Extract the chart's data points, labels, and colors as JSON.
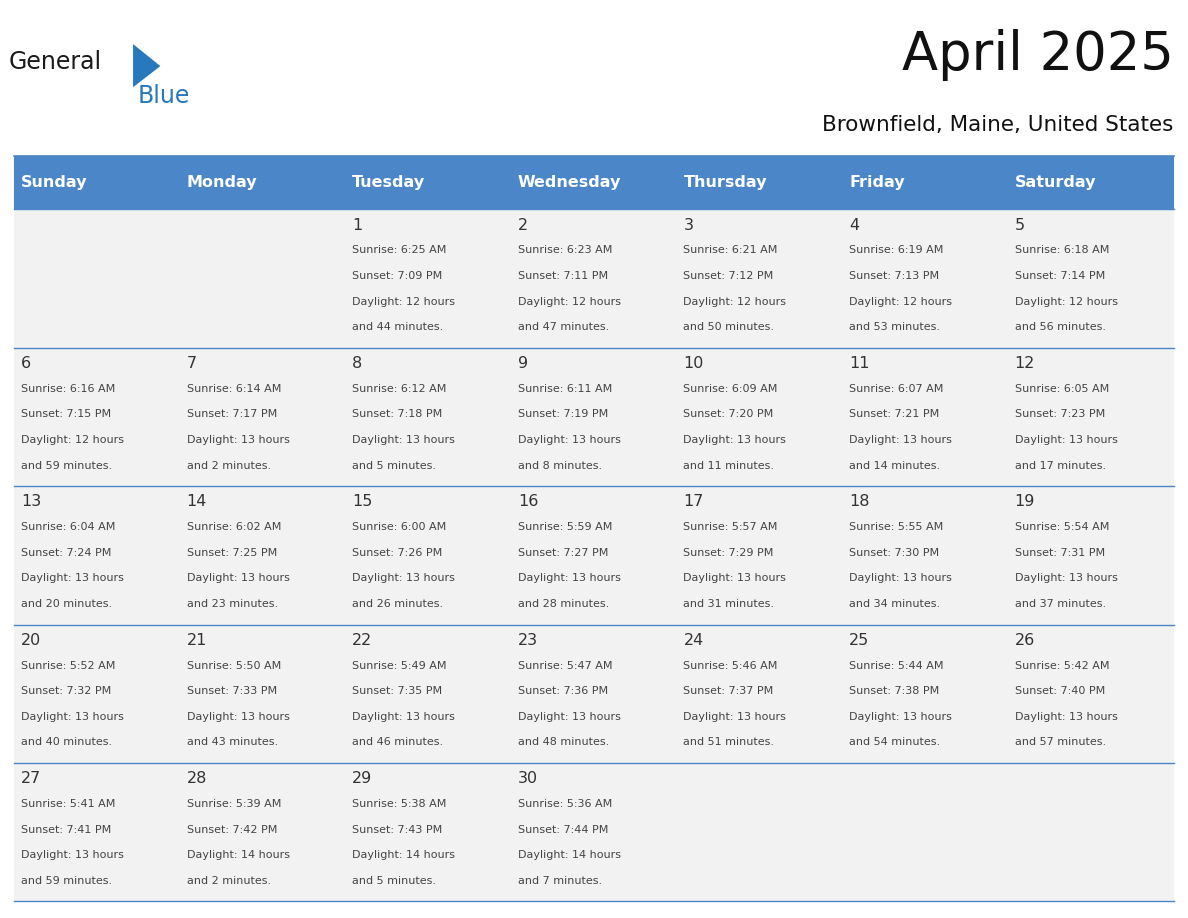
{
  "title": "April 2025",
  "subtitle": "Brownfield, Maine, United States",
  "header_color": "#4a86c8",
  "header_text_color": "#ffffff",
  "cell_bg_color": "#f2f2f2",
  "day_num_color": "#333333",
  "text_color": "#444444",
  "line_color": "#4a86c8",
  "days_of_week": [
    "Sunday",
    "Monday",
    "Tuesday",
    "Wednesday",
    "Thursday",
    "Friday",
    "Saturday"
  ],
  "weeks": [
    [
      {
        "day": "",
        "info": ""
      },
      {
        "day": "",
        "info": ""
      },
      {
        "day": "1",
        "info": "Sunrise: 6:25 AM\nSunset: 7:09 PM\nDaylight: 12 hours\nand 44 minutes."
      },
      {
        "day": "2",
        "info": "Sunrise: 6:23 AM\nSunset: 7:11 PM\nDaylight: 12 hours\nand 47 minutes."
      },
      {
        "day": "3",
        "info": "Sunrise: 6:21 AM\nSunset: 7:12 PM\nDaylight: 12 hours\nand 50 minutes."
      },
      {
        "day": "4",
        "info": "Sunrise: 6:19 AM\nSunset: 7:13 PM\nDaylight: 12 hours\nand 53 minutes."
      },
      {
        "day": "5",
        "info": "Sunrise: 6:18 AM\nSunset: 7:14 PM\nDaylight: 12 hours\nand 56 minutes."
      }
    ],
    [
      {
        "day": "6",
        "info": "Sunrise: 6:16 AM\nSunset: 7:15 PM\nDaylight: 12 hours\nand 59 minutes."
      },
      {
        "day": "7",
        "info": "Sunrise: 6:14 AM\nSunset: 7:17 PM\nDaylight: 13 hours\nand 2 minutes."
      },
      {
        "day": "8",
        "info": "Sunrise: 6:12 AM\nSunset: 7:18 PM\nDaylight: 13 hours\nand 5 minutes."
      },
      {
        "day": "9",
        "info": "Sunrise: 6:11 AM\nSunset: 7:19 PM\nDaylight: 13 hours\nand 8 minutes."
      },
      {
        "day": "10",
        "info": "Sunrise: 6:09 AM\nSunset: 7:20 PM\nDaylight: 13 hours\nand 11 minutes."
      },
      {
        "day": "11",
        "info": "Sunrise: 6:07 AM\nSunset: 7:21 PM\nDaylight: 13 hours\nand 14 minutes."
      },
      {
        "day": "12",
        "info": "Sunrise: 6:05 AM\nSunset: 7:23 PM\nDaylight: 13 hours\nand 17 minutes."
      }
    ],
    [
      {
        "day": "13",
        "info": "Sunrise: 6:04 AM\nSunset: 7:24 PM\nDaylight: 13 hours\nand 20 minutes."
      },
      {
        "day": "14",
        "info": "Sunrise: 6:02 AM\nSunset: 7:25 PM\nDaylight: 13 hours\nand 23 minutes."
      },
      {
        "day": "15",
        "info": "Sunrise: 6:00 AM\nSunset: 7:26 PM\nDaylight: 13 hours\nand 26 minutes."
      },
      {
        "day": "16",
        "info": "Sunrise: 5:59 AM\nSunset: 7:27 PM\nDaylight: 13 hours\nand 28 minutes."
      },
      {
        "day": "17",
        "info": "Sunrise: 5:57 AM\nSunset: 7:29 PM\nDaylight: 13 hours\nand 31 minutes."
      },
      {
        "day": "18",
        "info": "Sunrise: 5:55 AM\nSunset: 7:30 PM\nDaylight: 13 hours\nand 34 minutes."
      },
      {
        "day": "19",
        "info": "Sunrise: 5:54 AM\nSunset: 7:31 PM\nDaylight: 13 hours\nand 37 minutes."
      }
    ],
    [
      {
        "day": "20",
        "info": "Sunrise: 5:52 AM\nSunset: 7:32 PM\nDaylight: 13 hours\nand 40 minutes."
      },
      {
        "day": "21",
        "info": "Sunrise: 5:50 AM\nSunset: 7:33 PM\nDaylight: 13 hours\nand 43 minutes."
      },
      {
        "day": "22",
        "info": "Sunrise: 5:49 AM\nSunset: 7:35 PM\nDaylight: 13 hours\nand 46 minutes."
      },
      {
        "day": "23",
        "info": "Sunrise: 5:47 AM\nSunset: 7:36 PM\nDaylight: 13 hours\nand 48 minutes."
      },
      {
        "day": "24",
        "info": "Sunrise: 5:46 AM\nSunset: 7:37 PM\nDaylight: 13 hours\nand 51 minutes."
      },
      {
        "day": "25",
        "info": "Sunrise: 5:44 AM\nSunset: 7:38 PM\nDaylight: 13 hours\nand 54 minutes."
      },
      {
        "day": "26",
        "info": "Sunrise: 5:42 AM\nSunset: 7:40 PM\nDaylight: 13 hours\nand 57 minutes."
      }
    ],
    [
      {
        "day": "27",
        "info": "Sunrise: 5:41 AM\nSunset: 7:41 PM\nDaylight: 13 hours\nand 59 minutes."
      },
      {
        "day": "28",
        "info": "Sunrise: 5:39 AM\nSunset: 7:42 PM\nDaylight: 14 hours\nand 2 minutes."
      },
      {
        "day": "29",
        "info": "Sunrise: 5:38 AM\nSunset: 7:43 PM\nDaylight: 14 hours\nand 5 minutes."
      },
      {
        "day": "30",
        "info": "Sunrise: 5:36 AM\nSunset: 7:44 PM\nDaylight: 14 hours\nand 7 minutes."
      },
      {
        "day": "",
        "info": ""
      },
      {
        "day": "",
        "info": ""
      },
      {
        "day": "",
        "info": ""
      }
    ]
  ],
  "logo_general_color": "#1a1a1a",
  "logo_blue_color": "#2878be",
  "logo_triangle_color": "#2878be",
  "fig_width": 11.88,
  "fig_height": 9.18,
  "dpi": 100
}
